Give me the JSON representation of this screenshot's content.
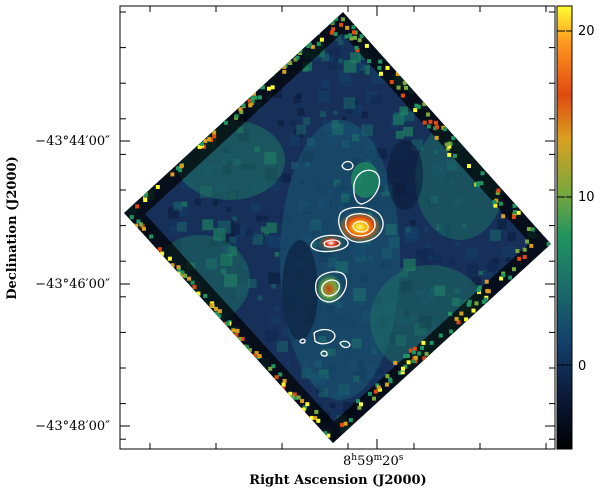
{
  "figure": {
    "xlabel": "Right Ascension (J2000)",
    "ylabel": "Declination (J2000)",
    "x_tick_label": {
      "h": "8",
      "m": "59",
      "s": "20"
    },
    "y_tick_labels": [
      "−43°44′00″",
      "−43°46′00″",
      "−43°48′00″"
    ],
    "colorbar_labels": [
      "20",
      "10",
      "0"
    ],
    "colorbar_values": [
      20,
      10,
      0
    ],
    "colorbar_range": [
      -5,
      21
    ],
    "colormap": [
      "#000000",
      "#0b1a3a",
      "#13406a",
      "#1a6a6a",
      "#1f9460",
      "#7aa83c",
      "#d9a020",
      "#e04a10",
      "#ffff30"
    ],
    "contour_color": "#ffffff",
    "map_border_color": "#000000"
  }
}
